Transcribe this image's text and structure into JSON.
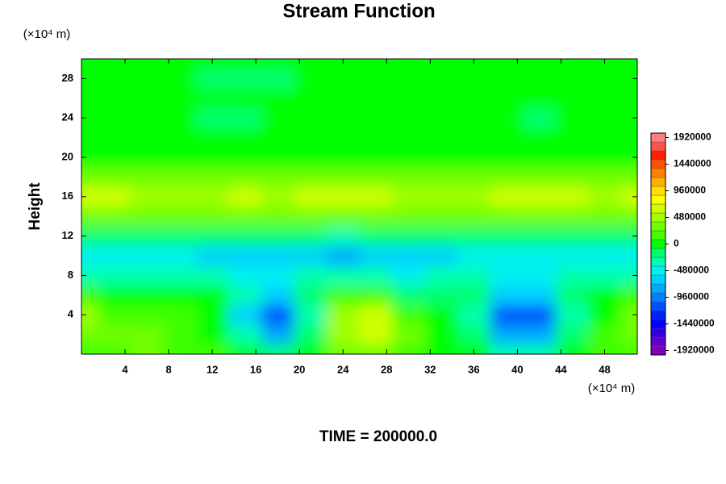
{
  "chart_data": {
    "type": "contour",
    "title": "Stream Function",
    "ylabel": "Height",
    "xunit": "(×10⁴ m)",
    "yunit": "(×10⁴ m)",
    "footer": "TIME = 200000.0",
    "xlim": [
      0,
      51
    ],
    "ylim": [
      0,
      30
    ],
    "xticks": [
      4,
      8,
      12,
      16,
      20,
      24,
      28,
      32,
      36,
      40,
      44,
      48
    ],
    "yticks": [
      4,
      8,
      12,
      16,
      20,
      24,
      28
    ],
    "clim": [
      -2000000,
      2000000
    ],
    "cticks": [
      1920000,
      1440000,
      960000,
      480000,
      0,
      -480000,
      -960000,
      -1440000,
      -1920000
    ],
    "colors": [
      "#8000c0",
      "#6000d0",
      "#3000e0",
      "#0000ff",
      "#0020ff",
      "#0050ff",
      "#0080ff",
      "#00a8ff",
      "#00d0ff",
      "#00f0f0",
      "#00ffb0",
      "#00ff70",
      "#00ff00",
      "#40ff00",
      "#70ff00",
      "#a0ff00",
      "#d0ff00",
      "#ffff00",
      "#ffe000",
      "#ffb000",
      "#ff8000",
      "#ff5000",
      "#ff2000",
      "#ff5050",
      "#ff8080"
    ],
    "x": [
      0,
      3,
      6,
      9,
      12,
      15,
      18,
      21,
      24,
      27,
      30,
      33,
      36,
      39,
      42,
      45,
      48,
      51
    ],
    "y": [
      0,
      2,
      4,
      6,
      8,
      10,
      12,
      14,
      16,
      18,
      20,
      22,
      24,
      26,
      28,
      30
    ],
    "z": [
      [
        200000,
        160000,
        240000,
        120000,
        80000,
        -80000,
        -240000,
        -80000,
        240000,
        320000,
        160000,
        40000,
        -80000,
        -320000,
        -320000,
        -40000,
        80000,
        160000
      ],
      [
        320000,
        260000,
        300000,
        120000,
        40000,
        -400000,
        -800000,
        -240000,
        400000,
        560000,
        240000,
        0,
        -240000,
        -800000,
        -880000,
        -240000,
        80000,
        240000
      ],
      [
        400000,
        200000,
        160000,
        80000,
        0,
        -640000,
        -1200000,
        -320000,
        400000,
        560000,
        160000,
        -40000,
        -320000,
        -1120000,
        -1200000,
        -320000,
        40000,
        320000
      ],
      [
        120000,
        40000,
        0,
        -40000,
        -80000,
        -400000,
        -720000,
        -240000,
        120000,
        160000,
        -160000,
        -160000,
        -240000,
        -640000,
        -720000,
        -240000,
        -40000,
        120000
      ],
      [
        -320000,
        -320000,
        -360000,
        -360000,
        -360000,
        -440000,
        -480000,
        -400000,
        -320000,
        -360000,
        -440000,
        -400000,
        -400000,
        -480000,
        -480000,
        -400000,
        -320000,
        -280000
      ],
      [
        -560000,
        -560000,
        -560000,
        -560000,
        -600000,
        -600000,
        -600000,
        -640000,
        -760000,
        -720000,
        -640000,
        -600000,
        -560000,
        -560000,
        -560000,
        -560000,
        -560000,
        -560000
      ],
      [
        -240000,
        -240000,
        -240000,
        -200000,
        -200000,
        -240000,
        -240000,
        -240000,
        -280000,
        -240000,
        -240000,
        -200000,
        -200000,
        -240000,
        -240000,
        -240000,
        -240000,
        -240000
      ],
      [
        240000,
        240000,
        240000,
        240000,
        240000,
        240000,
        240000,
        240000,
        280000,
        240000,
        240000,
        240000,
        240000,
        240000,
        240000,
        240000,
        240000,
        240000
      ],
      [
        600000,
        560000,
        480000,
        520000,
        480000,
        560000,
        520000,
        560000,
        640000,
        600000,
        520000,
        480000,
        520000,
        560000,
        640000,
        560000,
        480000,
        600000
      ],
      [
        360000,
        320000,
        320000,
        320000,
        320000,
        360000,
        320000,
        320000,
        360000,
        360000,
        320000,
        320000,
        320000,
        320000,
        360000,
        320000,
        320000,
        360000
      ],
      [
        40000,
        40000,
        40000,
        40000,
        40000,
        40000,
        40000,
        40000,
        40000,
        40000,
        40000,
        40000,
        40000,
        40000,
        40000,
        40000,
        40000,
        40000
      ],
      [
        -40000,
        -40000,
        -40000,
        -80000,
        -80000,
        -80000,
        -80000,
        -40000,
        -40000,
        -40000,
        -40000,
        -40000,
        -40000,
        -40000,
        -40000,
        -40000,
        -40000,
        -40000
      ],
      [
        -40000,
        -40000,
        -40000,
        -80000,
        -120000,
        -120000,
        -80000,
        -40000,
        -40000,
        -40000,
        -40000,
        -40000,
        -40000,
        -80000,
        -120000,
        -80000,
        -40000,
        -40000
      ],
      [
        -40000,
        -40000,
        -40000,
        -40000,
        -40000,
        -40000,
        -40000,
        -40000,
        -40000,
        -40000,
        -40000,
        -40000,
        -40000,
        -40000,
        -40000,
        -40000,
        -40000,
        -40000
      ],
      [
        -40000,
        -40000,
        -40000,
        -80000,
        -120000,
        -120000,
        -120000,
        -80000,
        -40000,
        -40000,
        -40000,
        -40000,
        -40000,
        -40000,
        -40000,
        -40000,
        -40000,
        -40000
      ],
      [
        0,
        0,
        0,
        0,
        0,
        0,
        0,
        0,
        0,
        0,
        0,
        0,
        0,
        0,
        0,
        0,
        0,
        0
      ]
    ]
  }
}
